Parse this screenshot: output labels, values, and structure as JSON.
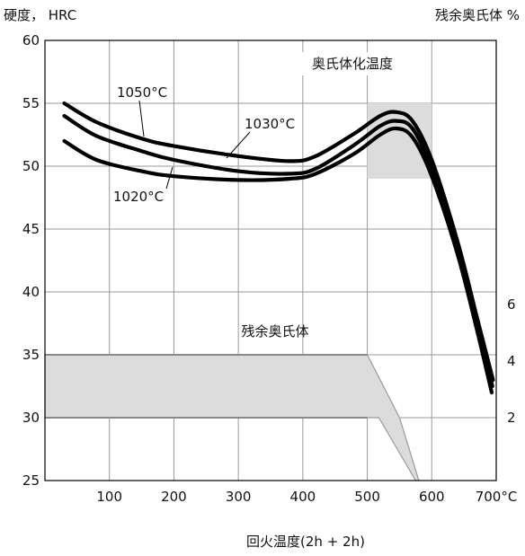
{
  "chart_data": {
    "type": "line",
    "ylabel_left": "硬度， HRC",
    "ylabel_right": "残余奥氏体 %",
    "xlabel": "回火温度(2h + 2h)",
    "xlim": [
      0,
      700
    ],
    "ylim": [
      25,
      60
    ],
    "x_ticks": [
      "100",
      "200",
      "300",
      "400",
      "500",
      "600",
      "700°C"
    ],
    "y_ticks": [
      "25",
      "30",
      "35",
      "40",
      "45",
      "50",
      "55",
      "60"
    ],
    "y2_ticks": [
      {
        "label": "2",
        "at_hrc": 30
      },
      {
        "label": "4",
        "at_hrc": 34.5
      },
      {
        "label": "6",
        "at_hrc": 39
      }
    ],
    "grid": true,
    "series": [
      {
        "name": "1050°C",
        "x": [
          30,
          80,
          150,
          200,
          300,
          380,
          420,
          480,
          520,
          545,
          570,
          600,
          640,
          670,
          695
        ],
        "y": [
          55,
          53.5,
          52.2,
          51.6,
          50.8,
          50.4,
          50.8,
          52.6,
          54,
          54.3,
          53.6,
          50.5,
          44,
          38,
          33
        ]
      },
      {
        "name": "1030°C",
        "x": [
          30,
          80,
          150,
          200,
          300,
          380,
          420,
          480,
          520,
          545,
          570,
          600,
          640,
          670,
          694
        ],
        "y": [
          54,
          52.4,
          51.2,
          50.5,
          49.6,
          49.4,
          49.8,
          51.7,
          53.2,
          53.6,
          53,
          49.8,
          43.5,
          37.5,
          32.5
        ]
      },
      {
        "name": "1020°C",
        "x": [
          30,
          80,
          150,
          200,
          300,
          380,
          420,
          480,
          520,
          545,
          570,
          600,
          640,
          670,
          693
        ],
        "y": [
          52,
          50.5,
          49.6,
          49.2,
          48.9,
          49,
          49.4,
          51,
          52.5,
          53,
          52.3,
          49.2,
          43,
          37,
          32
        ]
      }
    ],
    "annotations": {
      "austenitizing_label": "奥氏体化温度",
      "austenitizing_box": {
        "x": [
          500,
          600
        ],
        "y": [
          49,
          55
        ]
      },
      "retained_label": "残余奥氏体",
      "retained_region": [
        [
          0,
          35
        ],
        [
          500,
          35
        ],
        [
          550,
          30
        ],
        [
          580,
          25
        ],
        [
          575,
          25
        ],
        [
          518,
          30
        ],
        [
          0,
          30
        ]
      ],
      "retained_band_top": [
        [
          0,
          35
        ],
        [
          500,
          35
        ]
      ],
      "retained_band_bottom": [
        [
          0,
          30
        ],
        [
          500,
          30
        ]
      ]
    },
    "colors": {
      "line": "#000000",
      "shade": "#dcdcdc",
      "grid": "#999999"
    }
  }
}
